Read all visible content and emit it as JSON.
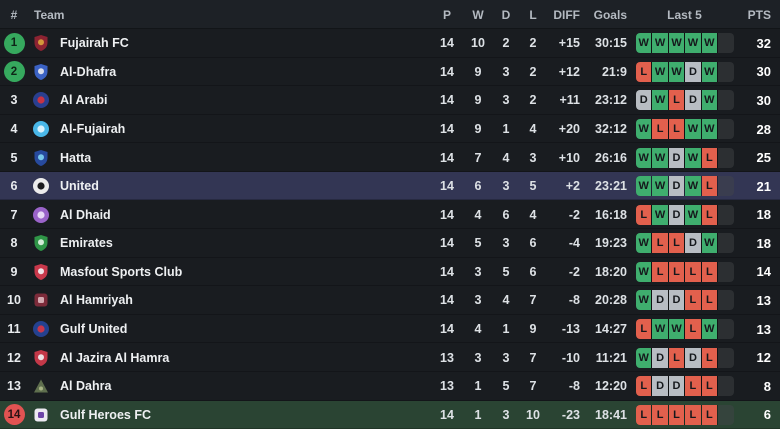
{
  "table": {
    "columns": {
      "rank": "#",
      "team": "Team",
      "p": "P",
      "w": "W",
      "d": "D",
      "l": "L",
      "diff": "DIFF",
      "goals": "Goals",
      "last5": "Last 5",
      "pts": "PTS"
    },
    "rows": [
      {
        "rank": "1",
        "rank_style": "green",
        "team": "Fujairah FC",
        "badge": {
          "shape": "shield",
          "primary": "#8c2332",
          "secondary": "#d9a33c"
        },
        "p": "14",
        "w": "10",
        "d": "2",
        "l": "2",
        "diff": "+15",
        "goals": "30:15",
        "last5": [
          "W",
          "W",
          "W",
          "W",
          "W"
        ],
        "pts": "32",
        "row_style": "normal"
      },
      {
        "rank": "2",
        "rank_style": "green",
        "team": "Al-Dhafra",
        "badge": {
          "shape": "shield",
          "primary": "#3b62c4",
          "secondary": "#e8e8ee"
        },
        "p": "14",
        "w": "9",
        "d": "3",
        "l": "2",
        "diff": "+12",
        "goals": "21:9",
        "last5": [
          "L",
          "W",
          "W",
          "D",
          "W"
        ],
        "pts": "30",
        "row_style": "normal"
      },
      {
        "rank": "3",
        "rank_style": "plain",
        "team": "Al Arabi",
        "badge": {
          "shape": "circle",
          "primary": "#2a3f8f",
          "secondary": "#c93343"
        },
        "p": "14",
        "w": "9",
        "d": "3",
        "l": "2",
        "diff": "+11",
        "goals": "23:12",
        "last5": [
          "D",
          "W",
          "L",
          "D",
          "W"
        ],
        "pts": "30",
        "row_style": "normal"
      },
      {
        "rank": "4",
        "rank_style": "plain",
        "team": "Al-Fujairah",
        "badge": {
          "shape": "circle",
          "primary": "#49b7e8",
          "secondary": "#d9f1fc"
        },
        "p": "14",
        "w": "9",
        "d": "1",
        "l": "4",
        "diff": "+20",
        "goals": "32:12",
        "last5": [
          "W",
          "L",
          "L",
          "W",
          "W"
        ],
        "pts": "28",
        "row_style": "normal"
      },
      {
        "rank": "5",
        "rank_style": "plain",
        "team": "Hatta",
        "badge": {
          "shape": "shield",
          "primary": "#274a9e",
          "secondary": "#7fd2f2"
        },
        "p": "14",
        "w": "7",
        "d": "4",
        "l": "3",
        "diff": "+10",
        "goals": "26:16",
        "last5": [
          "W",
          "W",
          "D",
          "W",
          "L"
        ],
        "pts": "25",
        "row_style": "normal"
      },
      {
        "rank": "6",
        "rank_style": "plain",
        "team": "United",
        "badge": {
          "shape": "circle",
          "primary": "#ececec",
          "secondary": "#1b1b1e"
        },
        "p": "14",
        "w": "6",
        "d": "3",
        "l": "5",
        "diff": "+2",
        "goals": "23:21",
        "last5": [
          "W",
          "W",
          "D",
          "W",
          "L"
        ],
        "pts": "21",
        "row_style": "selected"
      },
      {
        "rank": "7",
        "rank_style": "plain",
        "team": "Al Dhaid",
        "badge": {
          "shape": "circle",
          "primary": "#9a63c9",
          "secondary": "#e8d9f6"
        },
        "p": "14",
        "w": "4",
        "d": "6",
        "l": "4",
        "diff": "-2",
        "goals": "16:18",
        "last5": [
          "L",
          "W",
          "D",
          "W",
          "L"
        ],
        "pts": "18",
        "row_style": "normal"
      },
      {
        "rank": "8",
        "rank_style": "plain",
        "team": "Emirates",
        "badge": {
          "shape": "shield",
          "primary": "#2f9547",
          "secondary": "#e2f2e4"
        },
        "p": "14",
        "w": "5",
        "d": "3",
        "l": "6",
        "diff": "-4",
        "goals": "19:23",
        "last5": [
          "W",
          "L",
          "L",
          "D",
          "W"
        ],
        "pts": "18",
        "row_style": "normal"
      },
      {
        "rank": "9",
        "rank_style": "plain",
        "team": "Masfout Sports Club",
        "badge": {
          "shape": "shield",
          "primary": "#c9384b",
          "secondary": "#f2f2f4"
        },
        "p": "14",
        "w": "3",
        "d": "5",
        "l": "6",
        "diff": "-2",
        "goals": "18:20",
        "last5": [
          "W",
          "L",
          "L",
          "L",
          "L"
        ],
        "pts": "14",
        "row_style": "normal"
      },
      {
        "rank": "10",
        "rank_style": "plain",
        "team": "Al Hamriyah",
        "badge": {
          "shape": "square",
          "primary": "#7c2b3a",
          "secondary": "#d3aab1"
        },
        "p": "14",
        "w": "3",
        "d": "4",
        "l": "7",
        "diff": "-8",
        "goals": "20:28",
        "last5": [
          "W",
          "D",
          "D",
          "L",
          "L"
        ],
        "pts": "13",
        "row_style": "normal"
      },
      {
        "rank": "11",
        "rank_style": "plain",
        "team": "Gulf United",
        "badge": {
          "shape": "circle",
          "primary": "#24418f",
          "secondary": "#c8374b"
        },
        "p": "14",
        "w": "4",
        "d": "1",
        "l": "9",
        "diff": "-13",
        "goals": "14:27",
        "last5": [
          "L",
          "W",
          "W",
          "L",
          "W"
        ],
        "pts": "13",
        "row_style": "normal"
      },
      {
        "rank": "12",
        "rank_style": "plain",
        "team": "Al Jazira Al Hamra",
        "badge": {
          "shape": "shield",
          "primary": "#c33848",
          "secondary": "#f0f0f2"
        },
        "p": "13",
        "w": "3",
        "d": "3",
        "l": "7",
        "diff": "-10",
        "goals": "11:21",
        "last5": [
          "W",
          "D",
          "L",
          "D",
          "L"
        ],
        "pts": "12",
        "row_style": "normal"
      },
      {
        "rank": "13",
        "rank_style": "plain",
        "team": "Al Dahra",
        "badge": {
          "shape": "triangle",
          "primary": "#5f6f4e",
          "secondary": "#a8b585"
        },
        "p": "13",
        "w": "1",
        "d": "5",
        "l": "7",
        "diff": "-8",
        "goals": "12:20",
        "last5": [
          "L",
          "D",
          "D",
          "L",
          "L"
        ],
        "pts": "8",
        "row_style": "normal"
      },
      {
        "rank": "14",
        "rank_style": "red",
        "team": "Gulf Heroes FC",
        "badge": {
          "shape": "square",
          "primary": "#eceaf2",
          "secondary": "#6d45a8"
        },
        "p": "14",
        "w": "1",
        "d": "3",
        "l": "10",
        "diff": "-23",
        "goals": "18:41",
        "last5": [
          "L",
          "L",
          "L",
          "L",
          "L"
        ],
        "pts": "6",
        "row_style": "relegation"
      }
    ]
  },
  "colors": {
    "result_win": "#3fae6e",
    "result_draw": "#b8bdc3",
    "result_loss": "#e2604d",
    "result_text": "#15181c",
    "form_tail": "rgba(190,200,210,0.16)",
    "selected_row": "#333654",
    "relegation_row": "#2a4433",
    "rank_promotion": "#36a95e",
    "rank_relegation": "#e15352",
    "row_background": "#191c20",
    "header_background": "#1d2126"
  }
}
